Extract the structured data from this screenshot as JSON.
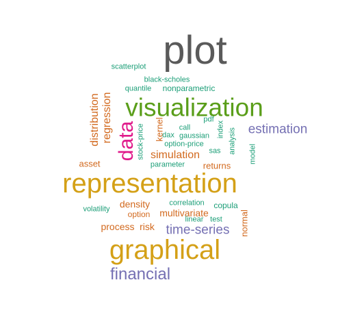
{
  "palette": {
    "gray": "#5a5a5a",
    "gold": "#d4a017",
    "green": "#5a9e1a",
    "magenta": "#e0198a",
    "purple": "#7570b3",
    "orange": "#d2691e",
    "teal": "#1b9e77"
  },
  "words": {
    "plot": "plot",
    "scatterplot": "scatterplot",
    "black_scholes": "black-scholes",
    "quantile": "quantile",
    "nonparametric": "nonparametric",
    "visualization": "visualization",
    "distribution": "distribution",
    "regression": "regression",
    "data": "data",
    "kernel": "kernel",
    "stock_price": "stock-price",
    "call": "call",
    "pdf": "pdf",
    "dax": "dax",
    "gaussian": "gaussian",
    "option_price": "option-price",
    "index": "index",
    "analysis": "analysis",
    "estimation": "estimation",
    "sas": "sas",
    "model": "model",
    "simulation": "simulation",
    "asset": "asset",
    "parameter": "parameter",
    "returns": "returns",
    "representation": "representation",
    "volatility": "volatility",
    "density": "density",
    "correlation": "correlation",
    "copula": "copula",
    "option": "option",
    "multivariate": "multivariate",
    "normal": "normal",
    "linear": "linear",
    "test": "test",
    "process": "process",
    "risk": "risk",
    "time_series": "time-series",
    "graphical": "graphical",
    "financial": "financial"
  }
}
